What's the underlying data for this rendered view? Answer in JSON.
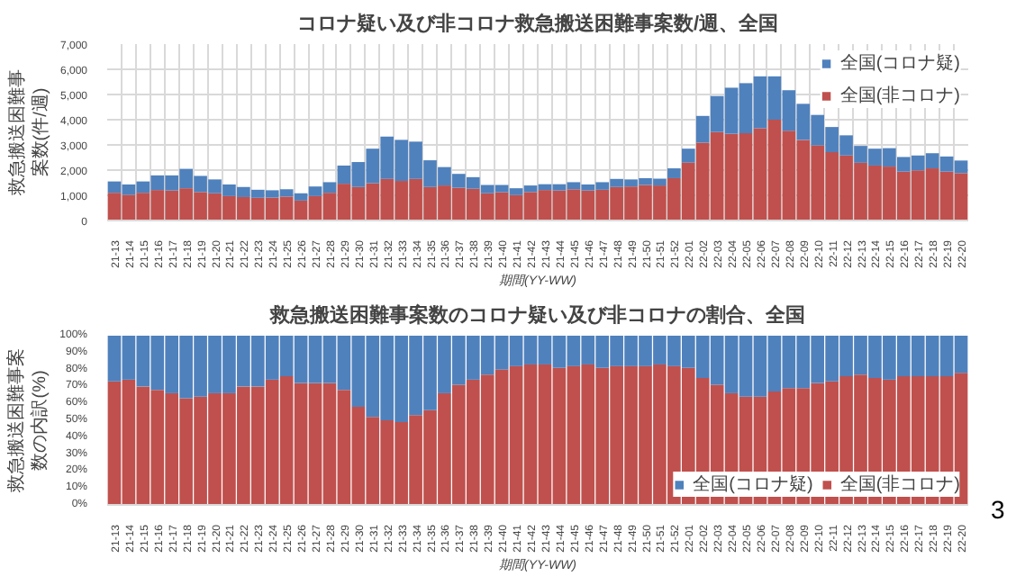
{
  "chart_data": [
    {
      "type": "bar",
      "title": "コロナ疑い及び非コロナ救急搬送困難事案数/週、全国",
      "ylabel": "救急搬送困難事案数(件/週)",
      "xlabel": "期間(YY-WW)",
      "stacked": true,
      "grid": true,
      "legend": "top right",
      "categories": [
        "21-13",
        "21-14",
        "21-15",
        "21-16",
        "21-17",
        "21-18",
        "21-19",
        "21-20",
        "21-21",
        "21-22",
        "21-23",
        "21-24",
        "21-25",
        "21-26",
        "21-27",
        "21-28",
        "21-29",
        "21-30",
        "21-31",
        "21-32",
        "21-33",
        "21-34",
        "21-35",
        "21-36",
        "21-37",
        "21-38",
        "21-39",
        "21-40",
        "21-41",
        "21-42",
        "21-43",
        "21-44",
        "21-45",
        "21-46",
        "21-47",
        "21-48",
        "21-49",
        "21-50",
        "21-51",
        "21-52",
        "22-01",
        "22-02",
        "22-03",
        "22-04",
        "22-05",
        "22-06",
        "22-07",
        "22-08",
        "22-09",
        "22-10",
        "22-11",
        "22-12",
        "22-13",
        "22-14",
        "22-15",
        "22-16",
        "22-17",
        "22-18",
        "22-19",
        "22-20"
      ],
      "ylim": [
        0,
        7000
      ],
      "yticks": [
        0,
        {
          "value": 1000,
          "label": "1,000"
        },
        {
          "value": 2000,
          "label": "2,000"
        },
        {
          "value": 3000,
          "label": "3,000"
        },
        {
          "value": 4000,
          "label": "4,000"
        },
        {
          "value": 5000,
          "label": "5,000"
        },
        {
          "value": 6000,
          "label": "6,000"
        },
        {
          "value": 7000,
          "label": "7,000"
        }
      ],
      "series": [
        {
          "name": "全国(非コロナ)",
          "color": "#c0504d",
          "values": [
            1100,
            1020,
            1100,
            1210,
            1190,
            1280,
            1130,
            1080,
            970,
            930,
            900,
            910,
            950,
            790,
            970,
            1100,
            1460,
            1330,
            1480,
            1650,
            1570,
            1650,
            1330,
            1390,
            1300,
            1260,
            1080,
            1120,
            1010,
            1130,
            1210,
            1190,
            1240,
            1190,
            1220,
            1330,
            1350,
            1410,
            1390,
            1680,
            2300,
            3090,
            3510,
            3440,
            3460,
            3660,
            4000,
            3560,
            3200,
            2980,
            2710,
            2580,
            2290,
            2180,
            2140,
            1940,
            1990,
            2070,
            1940,
            1880
          ]
        },
        {
          "name": "全国(コロナ疑)",
          "color": "#4f81bd",
          "values": [
            450,
            410,
            450,
            580,
            600,
            770,
            640,
            550,
            460,
            400,
            320,
            290,
            290,
            290,
            380,
            420,
            720,
            990,
            1370,
            1680,
            1630,
            1480,
            1060,
            730,
            550,
            460,
            330,
            290,
            270,
            260,
            230,
            250,
            280,
            240,
            300,
            320,
            280,
            270,
            270,
            390,
            550,
            1060,
            1430,
            1830,
            1990,
            2060,
            1720,
            1610,
            1430,
            1210,
            1000,
            800,
            670,
            670,
            730,
            580,
            590,
            600,
            600,
            500
          ]
        }
      ]
    },
    {
      "type": "bar",
      "title": "救急搬送困難事案数のコロナ疑い及び非コロナの割合、全国",
      "ylabel": "救急搬送困難事案数の内訳(%)",
      "xlabel": "期間(YY-WW)",
      "stacked": true,
      "legend": "bottom right",
      "categories": [
        "21-13",
        "21-14",
        "21-15",
        "21-16",
        "21-17",
        "21-18",
        "21-19",
        "21-20",
        "21-21",
        "21-22",
        "21-23",
        "21-24",
        "21-25",
        "21-26",
        "21-27",
        "21-28",
        "21-29",
        "21-30",
        "21-31",
        "21-32",
        "21-33",
        "21-34",
        "21-35",
        "21-36",
        "21-37",
        "21-38",
        "21-39",
        "21-40",
        "21-41",
        "21-42",
        "21-43",
        "21-44",
        "21-45",
        "21-46",
        "21-47",
        "21-48",
        "21-49",
        "21-50",
        "21-51",
        "21-52",
        "22-01",
        "22-02",
        "22-03",
        "22-04",
        "22-05",
        "22-06",
        "22-07",
        "22-08",
        "22-09",
        "22-10",
        "22-11",
        "22-12",
        "22-13",
        "22-14",
        "22-15",
        "22-16",
        "22-17",
        "22-18",
        "22-19",
        "22-20"
      ],
      "ylim": [
        0,
        100
      ],
      "yticks": [
        {
          "value": 0,
          "label": "0%"
        },
        {
          "value": 10,
          "label": "10%"
        },
        {
          "value": 20,
          "label": "20%"
        },
        {
          "value": 30,
          "label": "30%"
        },
        {
          "value": 40,
          "label": "40%"
        },
        {
          "value": 50,
          "label": "50%"
        },
        {
          "value": 60,
          "label": "60%"
        },
        {
          "value": 70,
          "label": "70%"
        },
        {
          "value": 80,
          "label": "80%"
        },
        {
          "value": 90,
          "label": "90%"
        },
        {
          "value": 100,
          "label": "100%"
        }
      ],
      "annotations": [
        "3"
      ],
      "series": [
        {
          "name": "全国(非コロナ)",
          "color": "#c0504d",
          "values": [
            73,
            74,
            70,
            68,
            66,
            63,
            64,
            66,
            66,
            70,
            70,
            74,
            76,
            72,
            72,
            72,
            68,
            58,
            52,
            50,
            49,
            53,
            56,
            66,
            71,
            74,
            77,
            80,
            82,
            83,
            83,
            81,
            82,
            83,
            81,
            82,
            82,
            82,
            83,
            82,
            81,
            75,
            71,
            66,
            64,
            64,
            67,
            69,
            69,
            72,
            73,
            76,
            77,
            75,
            74,
            76,
            76,
            76,
            76,
            78
          ]
        },
        {
          "name": "全国(コロナ疑)",
          "color": "#4f81bd",
          "values": [
            27,
            26,
            30,
            32,
            34,
            37,
            36,
            34,
            34,
            30,
            30,
            26,
            24,
            28,
            28,
            28,
            32,
            42,
            48,
            50,
            51,
            47,
            44,
            34,
            29,
            26,
            23,
            20,
            18,
            17,
            17,
            19,
            18,
            17,
            19,
            18,
            18,
            18,
            17,
            18,
            19,
            25,
            29,
            34,
            36,
            36,
            33,
            31,
            31,
            28,
            27,
            24,
            23,
            25,
            26,
            24,
            24,
            24,
            24,
            22
          ]
        }
      ]
    }
  ]
}
